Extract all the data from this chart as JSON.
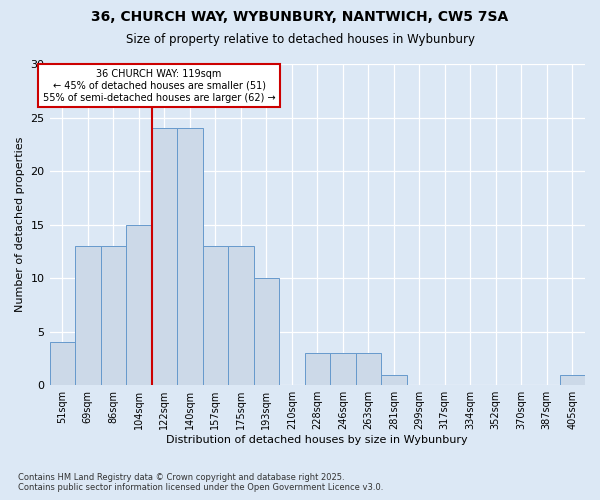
{
  "title_line1": "36, CHURCH WAY, WYBUNBURY, NANTWICH, CW5 7SA",
  "title_line2": "Size of property relative to detached houses in Wybunbury",
  "xlabel": "Distribution of detached houses by size in Wybunbury",
  "ylabel": "Number of detached properties",
  "bin_labels": [
    "51sqm",
    "69sqm",
    "86sqm",
    "104sqm",
    "122sqm",
    "140sqm",
    "157sqm",
    "175sqm",
    "193sqm",
    "210sqm",
    "228sqm",
    "246sqm",
    "263sqm",
    "281sqm",
    "299sqm",
    "317sqm",
    "334sqm",
    "352sqm",
    "370sqm",
    "387sqm",
    "405sqm"
  ],
  "bar_values": [
    4,
    13,
    13,
    15,
    24,
    24,
    13,
    13,
    10,
    0,
    3,
    3,
    3,
    1,
    0,
    0,
    0,
    0,
    0,
    0,
    1
  ],
  "bar_color": "#ccd9e8",
  "bar_edge_color": "#6699cc",
  "vline_index": 4,
  "property_line_label": "36 CHURCH WAY: 119sqm",
  "annotation_line2": "← 45% of detached houses are smaller (51)",
  "annotation_line3": "55% of semi-detached houses are larger (62) →",
  "annotation_box_color": "#ffffff",
  "annotation_box_edge_color": "#cc0000",
  "vline_color": "#cc0000",
  "ylim": [
    0,
    30
  ],
  "yticks": [
    0,
    5,
    10,
    15,
    20,
    25,
    30
  ],
  "footer_line1": "Contains HM Land Registry data © Crown copyright and database right 2025.",
  "footer_line2": "Contains public sector information licensed under the Open Government Licence v3.0.",
  "bg_color": "#dce8f5",
  "plot_bg_color": "#dce8f5"
}
